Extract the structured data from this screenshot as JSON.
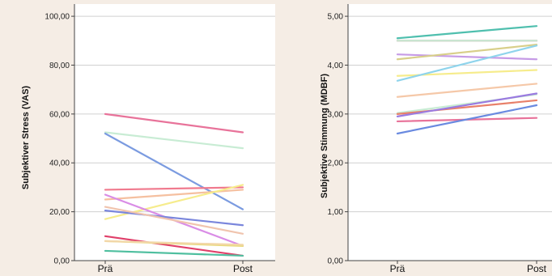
{
  "chart_data": [
    {
      "type": "line",
      "ylabel": "Subjektiver Stress (VAS)",
      "categories": [
        "Prä",
        "Post"
      ],
      "ylim": [
        0,
        105
      ],
      "yticks": [
        "0,00",
        "20,00",
        "40,00",
        "60,00",
        "80,00",
        "100,00"
      ],
      "ytick_values": [
        0,
        20,
        40,
        60,
        80,
        100
      ],
      "grid": true,
      "series": [
        {
          "values": [
            60,
            52.5
          ],
          "color": "#e8739a"
        },
        {
          "values": [
            52.5,
            46
          ],
          "color": "#c8ecd4"
        },
        {
          "values": [
            52,
            21
          ],
          "color": "#7b9be0"
        },
        {
          "values": [
            29,
            30
          ],
          "color": "#f07a8e"
        },
        {
          "values": [
            25,
            29
          ],
          "color": "#f5c0a0"
        },
        {
          "values": [
            17,
            31
          ],
          "color": "#f6ec8c"
        },
        {
          "values": [
            27,
            6
          ],
          "color": "#d98de6"
        },
        {
          "values": [
            20.5,
            14.5
          ],
          "color": "#7a86dc"
        },
        {
          "values": [
            22,
            11
          ],
          "color": "#f0c4ae"
        },
        {
          "values": [
            10,
            2
          ],
          "color": "#e0406a"
        },
        {
          "values": [
            8,
            6
          ],
          "color": "#e8da7c"
        },
        {
          "values": [
            8,
            6.5
          ],
          "color": "#f2d7a8"
        },
        {
          "values": [
            4,
            2
          ],
          "color": "#4fbf9f"
        }
      ]
    },
    {
      "type": "line",
      "ylabel": "Subjektive Stimmung (MDBF)",
      "categories": [
        "Prä",
        "Post"
      ],
      "ylim": [
        0,
        5.25
      ],
      "yticks": [
        "0,00",
        "1,00",
        "2,00",
        "3,00",
        "4,00",
        "5,00"
      ],
      "ytick_values": [
        0,
        1,
        2,
        3,
        4,
        5
      ],
      "grid": true,
      "series": [
        {
          "values": [
            4.55,
            4.8
          ],
          "color": "#4fbfae"
        },
        {
          "values": [
            4.5,
            4.5
          ],
          "color": "#e0406a"
        },
        {
          "values": [
            4.5,
            4.5
          ],
          "color": "#c8ecd4"
        },
        {
          "values": [
            4.22,
            4.12
          ],
          "color": "#c69be6"
        },
        {
          "values": [
            4.12,
            4.42
          ],
          "color": "#d8cf8a"
        },
        {
          "values": [
            3.78,
            3.9
          ],
          "color": "#f6ec8c"
        },
        {
          "values": [
            3.68,
            4.4
          ],
          "color": "#8fd4ec"
        },
        {
          "values": [
            3.35,
            3.62
          ],
          "color": "#f5c8a8"
        },
        {
          "values": [
            3.02,
            3.4
          ],
          "color": "#c8ecd4"
        },
        {
          "values": [
            3.0,
            3.28
          ],
          "color": "#e8806a"
        },
        {
          "values": [
            2.95,
            3.42
          ],
          "color": "#9a7be0"
        },
        {
          "values": [
            2.85,
            2.92
          ],
          "color": "#e8739a"
        },
        {
          "values": [
            2.6,
            3.18
          ],
          "color": "#6a8ae0"
        }
      ]
    }
  ]
}
